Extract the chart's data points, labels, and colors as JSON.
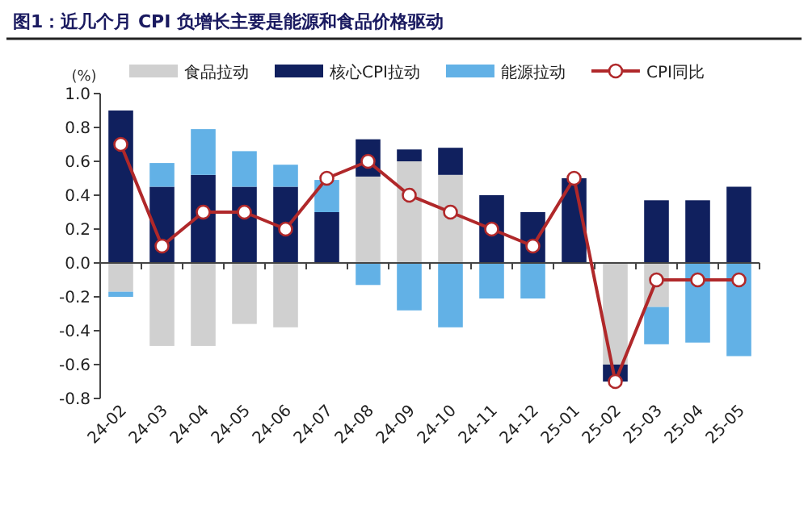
{
  "chart_data": {
    "type": "bar",
    "stacked": true,
    "title": "图1：近几个月 CPI 负增长主要是能源和食品价格驱动",
    "ylabel": "(%)",
    "categories": [
      "24-02",
      "24-03",
      "24-04",
      "24-05",
      "24-06",
      "24-07",
      "24-08",
      "24-09",
      "24-10",
      "24-11",
      "24-12",
      "25-01",
      "25-02",
      "25-03",
      "25-04",
      "25-05"
    ],
    "series": [
      {
        "name": "食品拉动",
        "color": "#d0d0d0",
        "values": [
          -0.17,
          -0.49,
          -0.49,
          -0.36,
          -0.38,
          0,
          0.51,
          0.6,
          0.52,
          0,
          0,
          0,
          -0.6,
          -0.26,
          0,
          0
        ]
      },
      {
        "name": "核心CPI拉动",
        "color": "#10205e",
        "values": [
          0.9,
          0.45,
          0.52,
          0.45,
          0.45,
          0.3,
          0.22,
          0.07,
          0.16,
          0.4,
          0.3,
          0.5,
          -0.1,
          0.37,
          0.37,
          0.45
        ]
      },
      {
        "name": "能源拉动",
        "color": "#62b1e6",
        "values": [
          -0.03,
          0.14,
          0.27,
          0.21,
          0.13,
          0.19,
          -0.13,
          -0.28,
          -0.38,
          -0.21,
          -0.21,
          0,
          0,
          -0.22,
          -0.47,
          -0.55
        ]
      },
      {
        "name": "CPI同比",
        "type": "line",
        "color": "#b0282a",
        "marker": "circle",
        "values": [
          0.7,
          0.1,
          0.3,
          0.3,
          0.2,
          0.5,
          0.6,
          0.4,
          0.3,
          0.2,
          0.1,
          0.5,
          -0.7,
          -0.1,
          -0.1,
          -0.1
        ]
      }
    ],
    "ylim": [
      -0.8,
      1.0
    ],
    "yticks": [
      {
        "value": -0.8,
        "label": "-0.8"
      },
      {
        "value": -0.6,
        "label": "-0.6"
      },
      {
        "value": -0.4,
        "label": "-0.4"
      },
      {
        "value": -0.2,
        "label": "-0.2"
      },
      {
        "value": 0,
        "label": "0.0"
      },
      {
        "value": 0.2,
        "label": "0.2"
      },
      {
        "value": 0.4,
        "label": "0.4"
      },
      {
        "value": 0.6,
        "label": "0.6"
      },
      {
        "value": 0.8,
        "label": "0.8"
      },
      {
        "value": 1.0,
        "label": "1.0"
      }
    ],
    "legend": "top"
  }
}
